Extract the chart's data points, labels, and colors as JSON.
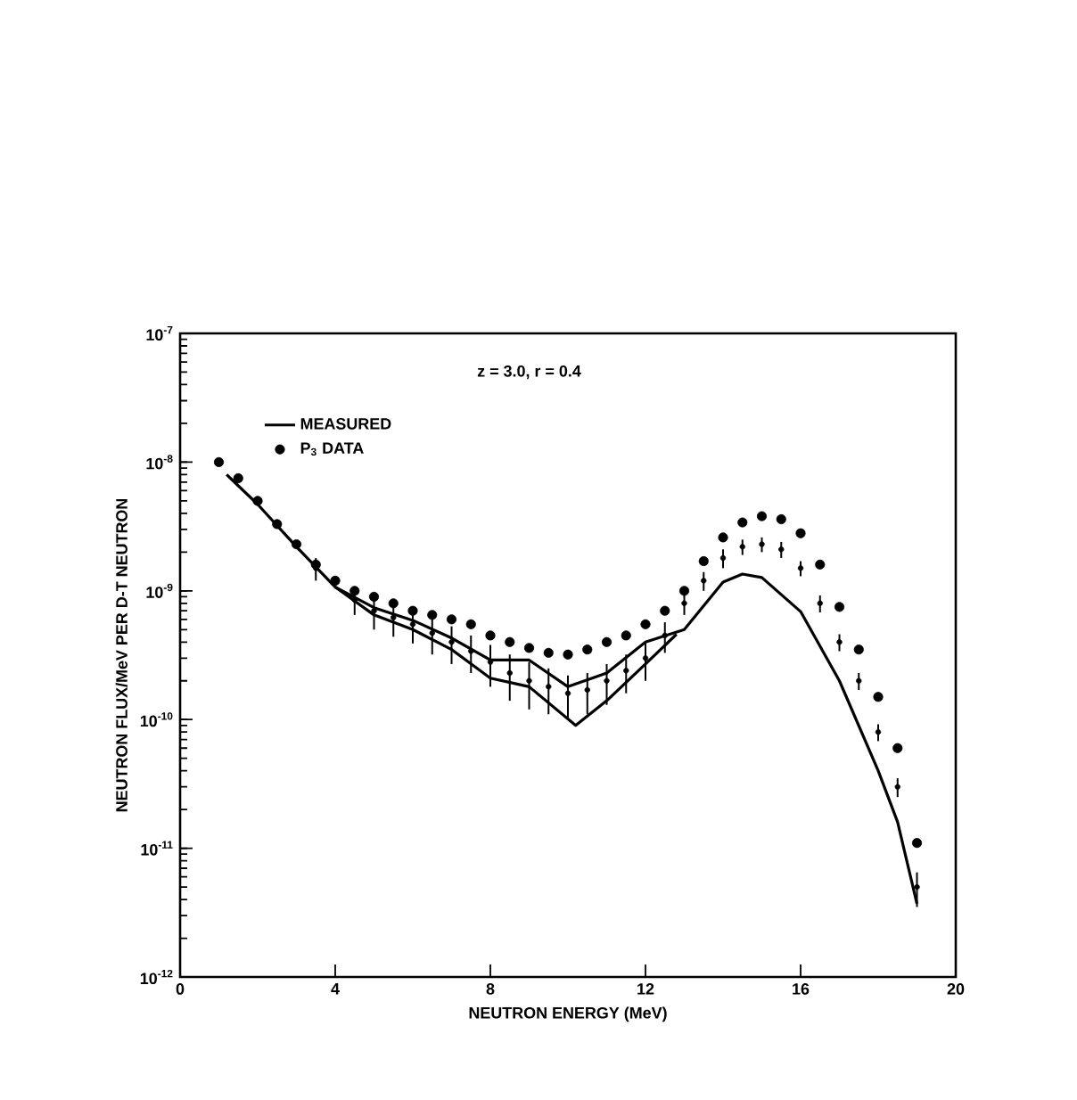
{
  "chart_data": {
    "type": "line",
    "xlabel": "NEUTRON ENERGY (MeV)",
    "ylabel": "NEUTRON FLUX/MeV PER D-T NEUTRON",
    "annotations": [
      "z = 3.0, r = 0.4"
    ],
    "log": "y",
    "legend": "top left",
    "xlim": [
      0,
      20
    ],
    "xticks": [
      0,
      4,
      8,
      12,
      16,
      20
    ],
    "ylim": [
      1e-12,
      1e-07
    ],
    "yticks": [
      {
        "value": 1e-12,
        "label": "10$^{-12}$"
      },
      {
        "value": 1e-11,
        "label": "10$^{-11}$"
      },
      {
        "value": 1e-10,
        "label": "10$^{-10}$"
      },
      {
        "value": 1e-09,
        "label": "10$^{-9}$"
      },
      {
        "value": 1e-08,
        "label": "10$^{-8}$"
      },
      {
        "value": 1e-07,
        "label": "10$^{-7}$"
      }
    ],
    "series": [
      {
        "name": "MEASURED",
        "type": "line",
        "color": "#000000",
        "marker": "none",
        "x": [
          1.2,
          2,
          3,
          4,
          5,
          6,
          7,
          8,
          9,
          10,
          11,
          12,
          13,
          14,
          14.5,
          15,
          16,
          17,
          18,
          18.5,
          19
        ],
        "values": [
          8e-09,
          4.7e-09,
          2.2e-09,
          1.07e-09,
          7.4e-10,
          5.9e-10,
          4.3e-10,
          2.9e-10,
          2.9e-10,
          1.8e-10,
          2.3e-10,
          4e-10,
          5e-10,
          1.17e-09,
          1.35e-09,
          1.27e-09,
          6.9e-10,
          2e-10,
          4e-11,
          1.6e-11,
          3.7e-12
        ]
      },
      {
        "type": "line",
        "color": "#000000",
        "marker": "none",
        "x": [
          4,
          5,
          6,
          7,
          8,
          9,
          10.2,
          11,
          12,
          12.8
        ],
        "values": [
          1.07e-09,
          6.5e-10,
          5e-10,
          3.5e-10,
          2.1e-10,
          1.8e-10,
          9e-11,
          1.4e-10,
          2.7e-10,
          4.6e-10
        ]
      },
      {
        "name": "P$_{3}$ DATA",
        "type": "scatter",
        "color": "#000000",
        "marker": "circle",
        "x": [
          1,
          1.5,
          2,
          2.5,
          3,
          3.5,
          4,
          4.5,
          5,
          5.5,
          6,
          6.5,
          7,
          7.5,
          8,
          8.5,
          9,
          9.5,
          10,
          10.5,
          11,
          11.5,
          12,
          12.5,
          13,
          13.5,
          14,
          14.5,
          15,
          15.5,
          16,
          16.5,
          17,
          17.5,
          18,
          18.5,
          19
        ],
        "values": [
          1e-08,
          7.5e-09,
          5e-09,
          3.3e-09,
          2.3e-09,
          1.6e-09,
          1.2e-09,
          1e-09,
          9e-10,
          8e-10,
          7e-10,
          6.5e-10,
          6e-10,
          5.5e-10,
          4.5e-10,
          4e-10,
          3.6e-10,
          3.3e-10,
          3.2e-10,
          3.5e-10,
          4e-10,
          4.5e-10,
          5.5e-10,
          7e-10,
          1e-09,
          1.7e-09,
          2.6e-09,
          3.4e-09,
          3.8e-09,
          3.6e-09,
          2.8e-09,
          1.6e-09,
          7.5e-10,
          3.5e-10,
          1.5e-10,
          6e-11,
          1.1e-11
        ]
      },
      {
        "type": "scatter",
        "color": "#000000",
        "marker": "circle",
        "x": [
          3.5,
          4.5,
          5,
          5.5,
          6,
          6.5,
          7,
          7.5,
          8,
          8.5,
          9,
          9.5,
          10,
          10.5,
          11,
          11.5,
          12,
          12.5,
          13,
          13.5,
          14,
          14.5,
          15,
          15.5,
          16,
          16.5,
          17,
          17.5,
          18,
          18.5,
          19
        ],
        "values": [
          1.5e-09,
          8.5e-10,
          7e-10,
          6.2e-10,
          5.5e-10,
          4.7e-10,
          4e-10,
          3.4e-10,
          2.8e-10,
          2.3e-10,
          2e-10,
          1.8e-10,
          1.6e-10,
          1.7e-10,
          2e-10,
          2.4e-10,
          3e-10,
          4.5e-10,
          8e-10,
          1.2e-09,
          1.8e-09,
          2.2e-09,
          2.3e-09,
          2.1e-09,
          1.5e-09,
          8e-10,
          4e-10,
          2e-10,
          8e-11,
          3e-11,
          5e-12
        ],
        "errors": [
          3e-10,
          2e-10,
          2e-10,
          1.8e-10,
          1.6e-10,
          1.5e-10,
          1.3e-10,
          1.1e-10,
          1e-10,
          9e-11,
          8e-11,
          7e-11,
          6e-11,
          6e-11,
          7e-11,
          8e-11,
          1e-10,
          1.2e-10,
          1.5e-10,
          2e-10,
          3e-10,
          3e-10,
          3e-10,
          3e-10,
          2e-10,
          1.2e-10,
          6e-11,
          3e-11,
          1.2e-11,
          5e-12,
          1.5e-12
        ]
      }
    ]
  }
}
